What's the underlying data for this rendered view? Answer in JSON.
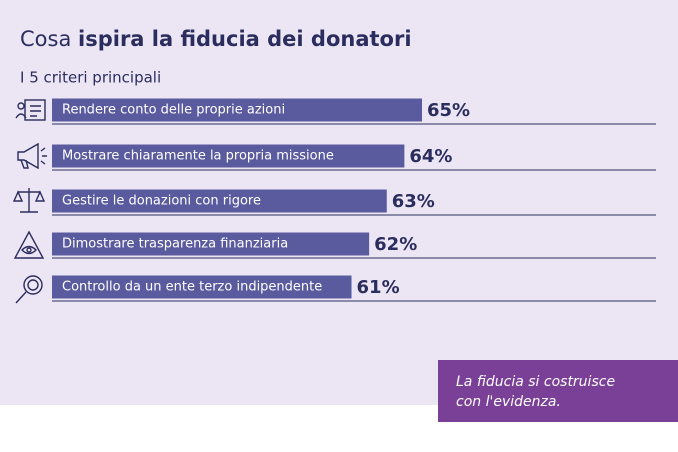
{
  "chart_data": {
    "type": "bar",
    "orientation": "horizontal",
    "title": {
      "regular": "Cosa",
      "bold": "ispira la fiducia dei donatori"
    },
    "subtitle": "I 5 criteri principali",
    "categories": [
      "Rendere conto delle proprie azioni",
      "Mostrare chiaramente la propria missione",
      "Gestire le donazioni con rigore",
      "Dimostrare trasparenza finanziaria",
      "Controllo da un ente terzo indipendente"
    ],
    "values": [
      65,
      64,
      63,
      62,
      61
    ],
    "value_labels": [
      "65%",
      "64%",
      "63%",
      "62%",
      "61%"
    ],
    "color": "#5a5a9e",
    "xlim": [
      44,
      65
    ],
    "quote": [
      "La fiducia si costruisce",
      "con l'evidenza."
    ]
  }
}
